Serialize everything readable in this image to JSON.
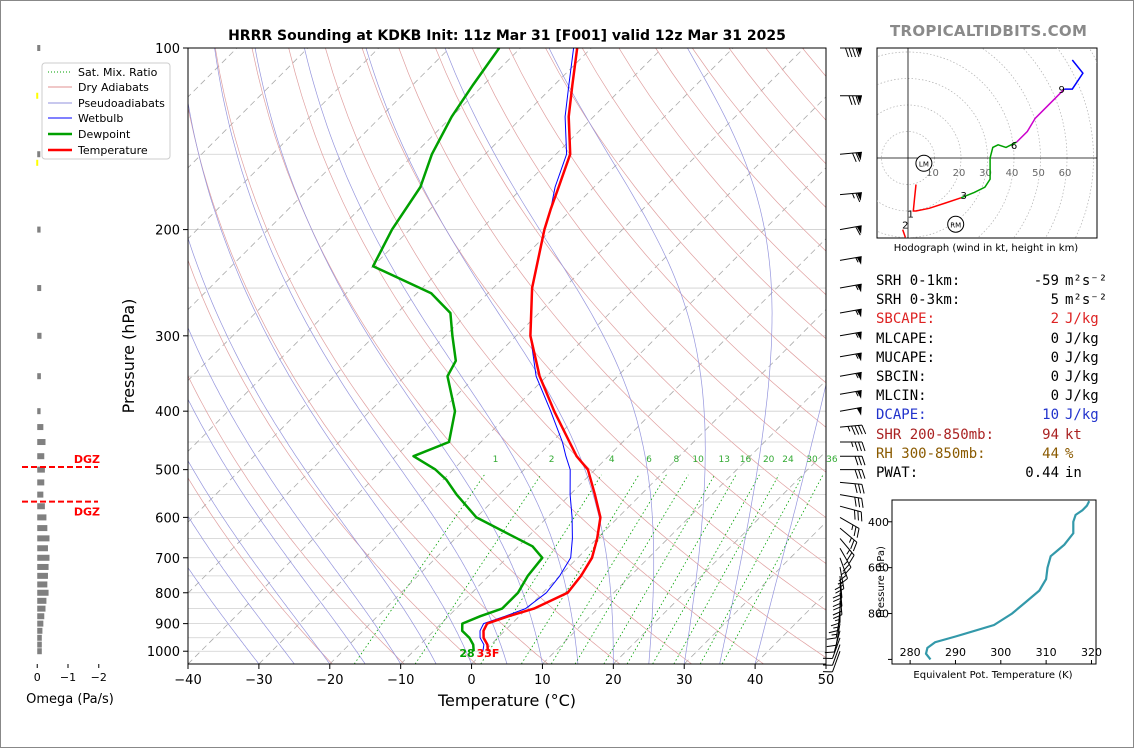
{
  "chart_data": [
    {
      "type": "line",
      "subtype": "skew-t log-p sounding",
      "title": "HRRR Sounding at KDKB Init: 11z Mar 31 [F001] valid 12z Mar 31 2025",
      "xlabel": "Temperature (°C)",
      "ylabel": "Pressure (hPa)",
      "xlim": [
        -40,
        50
      ],
      "ylim": [
        1050,
        100
      ],
      "y_scale": "log",
      "x_ticks": [
        "−40",
        "−30",
        "−20",
        "−10",
        "0",
        "10",
        "20",
        "30",
        "40",
        "50"
      ],
      "y_ticks": [
        100,
        200,
        300,
        400,
        500,
        600,
        700,
        800,
        900,
        1000
      ],
      "legend": [
        "Sat. Mix. Ratio",
        "Dry Adiabats",
        "Pseudoadiabats",
        "Wetbulb",
        "Dewpoint",
        "Temperature"
      ],
      "legend_position": "top-left",
      "mixing_ratio_labels": [
        "1",
        "2",
        "4",
        "6",
        "8",
        "10",
        "13",
        "16",
        "20",
        "24",
        "30",
        "36"
      ],
      "surface_labels": {
        "dewpoint": "28",
        "temperature": "33F"
      },
      "series": [
        {
          "name": "Temperature",
          "color": "#ff0000",
          "points": [
            [
              1000,
              0.5
            ],
            [
              975,
              -0.5
            ],
            [
              950,
              -2.0
            ],
            [
              925,
              -3.0
            ],
            [
              900,
              -3.5
            ],
            [
              875,
              -1.5
            ],
            [
              850,
              1.0
            ],
            [
              800,
              3.5
            ],
            [
              750,
              3.0
            ],
            [
              700,
              2.0
            ],
            [
              650,
              0.0
            ],
            [
              600,
              -2.5
            ],
            [
              550,
              -6.5
            ],
            [
              500,
              -11.0
            ],
            [
              475,
              -14.5
            ],
            [
              450,
              -17.5
            ],
            [
              400,
              -24.0
            ],
            [
              350,
              -31.0
            ],
            [
              300,
              -38.0
            ],
            [
              250,
              -44.5
            ],
            [
              200,
              -51.0
            ],
            [
              185,
              -53.0
            ],
            [
              170,
              -55.0
            ],
            [
              150,
              -58.0
            ],
            [
              130,
              -63.5
            ],
            [
              115,
              -67.5
            ],
            [
              100,
              -72.0
            ]
          ]
        },
        {
          "name": "Dewpoint",
          "color": "#00a000",
          "points": [
            [
              1000,
              -1.5
            ],
            [
              975,
              -2.5
            ],
            [
              950,
              -4.0
            ],
            [
              925,
              -6.0
            ],
            [
              900,
              -7.0
            ],
            [
              875,
              -5.5
            ],
            [
              850,
              -3.5
            ],
            [
              800,
              -3.5
            ],
            [
              750,
              -4.5
            ],
            [
              700,
              -5.0
            ],
            [
              670,
              -8.0
            ],
            [
              640,
              -13.0
            ],
            [
              600,
              -20.0
            ],
            [
              550,
              -26.0
            ],
            [
              520,
              -29.5
            ],
            [
              500,
              -32.5
            ],
            [
              475,
              -37.5
            ],
            [
              450,
              -34.5
            ],
            [
              400,
              -38.0
            ],
            [
              350,
              -44.0
            ],
            [
              330,
              -45.0
            ],
            [
              300,
              -49.0
            ],
            [
              275,
              -52.5
            ],
            [
              255,
              -58.0
            ],
            [
              230,
              -70.0
            ],
            [
              200,
              -72.5
            ],
            [
              170,
              -74.5
            ],
            [
              150,
              -77.5
            ],
            [
              130,
              -80.0
            ],
            [
              115,
              -81.5
            ],
            [
              100,
              -83.0
            ]
          ]
        },
        {
          "name": "Wetbulb",
          "color": "#0000ff",
          "points": [
            [
              1000,
              -0.2
            ],
            [
              975,
              -1.0
            ],
            [
              950,
              -2.5
            ],
            [
              925,
              -3.5
            ],
            [
              900,
              -4.0
            ],
            [
              875,
              -2.0
            ],
            [
              850,
              -0.2
            ],
            [
              800,
              0.5
            ],
            [
              750,
              0.0
            ],
            [
              700,
              -1.0
            ],
            [
              650,
              -3.5
            ],
            [
              600,
              -6.5
            ],
            [
              550,
              -10.0
            ],
            [
              500,
              -13.5
            ],
            [
              475,
              -16.0
            ],
            [
              450,
              -18.5
            ],
            [
              400,
              -24.5
            ],
            [
              350,
              -31.5
            ],
            [
              300,
              -38.0
            ],
            [
              250,
              -44.5
            ],
            [
              200,
              -51.0
            ],
            [
              185,
              -53.0
            ],
            [
              170,
              -55.5
            ],
            [
              150,
              -58.5
            ],
            [
              130,
              -64.0
            ],
            [
              115,
              -68.0
            ],
            [
              100,
              -72.5
            ]
          ]
        }
      ]
    },
    {
      "type": "bar",
      "subtype": "omega profile",
      "xlabel": "Omega (Pa/s)",
      "x_ticks": [
        "0",
        "−1",
        "−2"
      ],
      "xlim": [
        0.3,
        -2.3
      ],
      "dgz_label": "DGZ",
      "dgz_levels": [
        495,
        565
      ],
      "levels": [
        100,
        150,
        200,
        250,
        300,
        350,
        400,
        425,
        450,
        475,
        500,
        525,
        550,
        575,
        600,
        625,
        650,
        675,
        700,
        725,
        750,
        775,
        800,
        825,
        850,
        875,
        900,
        925,
        950,
        975,
        1000
      ],
      "values": [
        -0.05,
        -0.05,
        -0.06,
        -0.08,
        -0.09,
        -0.07,
        -0.06,
        -0.15,
        -0.22,
        -0.18,
        -0.2,
        -0.18,
        -0.15,
        -0.2,
        -0.25,
        -0.28,
        -0.35,
        -0.3,
        -0.35,
        -0.32,
        -0.3,
        -0.28,
        -0.32,
        -0.25,
        -0.22,
        -0.18,
        -0.15,
        -0.12,
        -0.1,
        -0.1,
        -0.1
      ],
      "highlight_levels": [
        120,
        155
      ],
      "highlight_color": "#ffff00"
    },
    {
      "type": "line",
      "subtype": "hodograph",
      "caption": "Hodograph (wind in kt, height in km)",
      "ring_labels": [
        "10",
        "20",
        "30",
        "40",
        "50",
        "60"
      ],
      "height_labels": [
        "1",
        "2",
        "3",
        "6",
        "9"
      ],
      "markers": [
        "LM",
        "RM"
      ],
      "segments": [
        {
          "color": "#ff0000",
          "points": [
            [
              3,
              -10
            ],
            [
              2.5,
              -15
            ],
            [
              2,
              -20
            ],
            [
              3,
              -20
            ],
            [
              8,
              -19
            ],
            [
              14,
              -17
            ],
            [
              20,
              -15
            ]
          ]
        },
        {
          "color": "#ff0000",
          "points": [
            [
              -2,
              -27
            ],
            [
              -1,
              -30
            ]
          ]
        },
        {
          "color": "#00a000",
          "points": [
            [
              20,
              -15
            ],
            [
              25,
              -13
            ],
            [
              29,
              -11
            ],
            [
              31,
              -8
            ],
            [
              31,
              0
            ],
            [
              32,
              4
            ],
            [
              34,
              5
            ],
            [
              37,
              4
            ],
            [
              41,
              6
            ]
          ]
        },
        {
          "color": "#cc00cc",
          "points": [
            [
              41,
              6
            ],
            [
              45,
              10
            ],
            [
              48,
              15
            ],
            [
              51,
              18
            ],
            [
              55,
              22
            ],
            [
              59,
              26
            ]
          ]
        },
        {
          "color": "#0000ff",
          "points": [
            [
              59,
              26
            ],
            [
              62,
              26
            ],
            [
              66,
              32
            ],
            [
              62,
              37
            ]
          ]
        }
      ],
      "height_label_points": [
        [
          1,
          -21
        ],
        [
          -1,
          -25
        ],
        [
          21,
          -14
        ],
        [
          40,
          5
        ],
        [
          58,
          26
        ]
      ],
      "marker_points": [
        [
          6,
          -2
        ],
        [
          18,
          -25
        ]
      ]
    },
    {
      "type": "line",
      "subtype": "theta-e profile",
      "xlabel": "Equivalent Pot. Temperature (K)",
      "ylabel": "Pressure (hPa)",
      "x_ticks": [
        "280",
        "290",
        "300",
        "310",
        "320"
      ],
      "y_ticks": [
        "400",
        "600",
        "800"
      ],
      "xlim": [
        276,
        321
      ],
      "ylim": [
        1020,
        305
      ],
      "color": "#3399aa",
      "points": [
        [
          1000,
          284.5
        ],
        [
          975,
          283.5
        ],
        [
          950,
          283.8
        ],
        [
          925,
          285.5
        ],
        [
          900,
          290.0
        ],
        [
          850,
          298.5
        ],
        [
          800,
          302.5
        ],
        [
          750,
          305.5
        ],
        [
          700,
          308.5
        ],
        [
          650,
          310.0
        ],
        [
          600,
          310.3
        ],
        [
          550,
          311.0
        ],
        [
          525,
          312.5
        ],
        [
          500,
          314.0
        ],
        [
          450,
          316.0
        ],
        [
          420,
          316.0
        ],
        [
          400,
          316.0
        ],
        [
          370,
          316.5
        ],
        [
          350,
          318.0
        ],
        [
          330,
          319.0
        ],
        [
          310,
          319.5
        ]
      ]
    }
  ],
  "brand": "TROPICALTIDBITS.COM",
  "stats": [
    {
      "label": "SRH 0-1km:",
      "value": "-59",
      "unit": "m²s⁻²",
      "color": "#000000"
    },
    {
      "label": "SRH 0-3km:",
      "value": "5",
      "unit": "m²s⁻²",
      "color": "#000000"
    },
    {
      "label": "SBCAPE:",
      "value": "2",
      "unit": "J/kg",
      "color": "#dd2222"
    },
    {
      "label": "MLCAPE:",
      "value": "0",
      "unit": "J/kg",
      "color": "#000000"
    },
    {
      "label": "MUCAPE:",
      "value": "0",
      "unit": "J/kg",
      "color": "#000000"
    },
    {
      "label": "SBCIN:",
      "value": "0",
      "unit": "J/kg",
      "color": "#000000"
    },
    {
      "label": "MLCIN:",
      "value": "0",
      "unit": "J/kg",
      "color": "#000000"
    },
    {
      "label": "DCAPE:",
      "value": "10",
      "unit": "J/kg",
      "color": "#2233cc"
    },
    {
      "label": "SHR 200-850mb:",
      "value": "94",
      "unit": "kt",
      "color": "#aa2222"
    },
    {
      "label": "RH 300-850mb:",
      "value": "44",
      "unit": "%",
      "color": "#8a5a00"
    },
    {
      "label": "PWAT:",
      "value": "0.44",
      "unit": "in",
      "color": "#000000"
    }
  ],
  "wind_barbs": [
    {
      "p": 100,
      "dir": 270,
      "spd": 90
    },
    {
      "p": 120,
      "dir": 270,
      "spd": 80
    },
    {
      "p": 150,
      "dir": 265,
      "spd": 70
    },
    {
      "p": 175,
      "dir": 265,
      "spd": 65
    },
    {
      "p": 200,
      "dir": 260,
      "spd": 60
    },
    {
      "p": 225,
      "dir": 260,
      "spd": 55
    },
    {
      "p": 250,
      "dir": 260,
      "spd": 55
    },
    {
      "p": 275,
      "dir": 260,
      "spd": 55
    },
    {
      "p": 300,
      "dir": 260,
      "spd": 55
    },
    {
      "p": 325,
      "dir": 260,
      "spd": 55
    },
    {
      "p": 350,
      "dir": 260,
      "spd": 55
    },
    {
      "p": 375,
      "dir": 260,
      "spd": 55
    },
    {
      "p": 400,
      "dir": 260,
      "spd": 50
    },
    {
      "p": 425,
      "dir": 265,
      "spd": 45
    },
    {
      "p": 450,
      "dir": 270,
      "spd": 35
    },
    {
      "p": 475,
      "dir": 270,
      "spd": 30
    },
    {
      "p": 500,
      "dir": 270,
      "spd": 30
    },
    {
      "p": 525,
      "dir": 275,
      "spd": 30
    },
    {
      "p": 550,
      "dir": 280,
      "spd": 30
    },
    {
      "p": 575,
      "dir": 285,
      "spd": 30
    },
    {
      "p": 600,
      "dir": 300,
      "spd": 25
    },
    {
      "p": 625,
      "dir": 310,
      "spd": 25
    },
    {
      "p": 650,
      "dir": 320,
      "spd": 25
    },
    {
      "p": 675,
      "dir": 330,
      "spd": 25
    },
    {
      "p": 700,
      "dir": 340,
      "spd": 25
    },
    {
      "p": 725,
      "dir": 350,
      "spd": 25
    },
    {
      "p": 750,
      "dir": 355,
      "spd": 20
    },
    {
      "p": 775,
      "dir": 355,
      "spd": 20
    },
    {
      "p": 800,
      "dir": 355,
      "spd": 20
    },
    {
      "p": 825,
      "dir": 0,
      "spd": 15
    },
    {
      "p": 850,
      "dir": 5,
      "spd": 15
    },
    {
      "p": 875,
      "dir": 10,
      "spd": 15
    },
    {
      "p": 900,
      "dir": 10,
      "spd": 10
    },
    {
      "p": 925,
      "dir": 15,
      "spd": 10
    },
    {
      "p": 950,
      "dir": 20,
      "spd": 10
    },
    {
      "p": 975,
      "dir": 20,
      "spd": 10
    },
    {
      "p": 1000,
      "dir": 20,
      "spd": 10
    }
  ]
}
